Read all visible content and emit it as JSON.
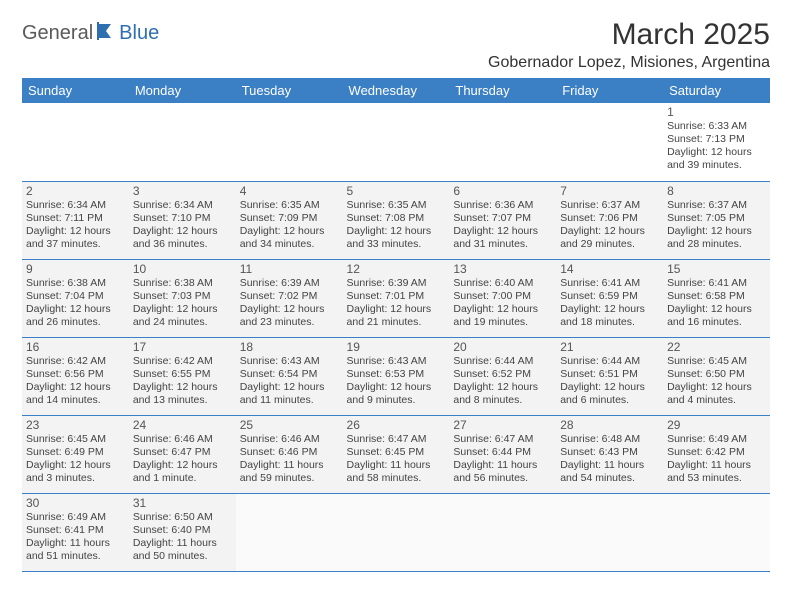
{
  "logo": {
    "part1": "General",
    "part2": "Blue"
  },
  "title": "March 2025",
  "location": "Gobernador Lopez, Misiones, Argentina",
  "colors": {
    "header_bg": "#3b7fc4",
    "header_fg": "#ffffff",
    "border": "#3b7fc4",
    "logo_gray": "#5a5a5a",
    "logo_blue": "#2f6fb0"
  },
  "weekdays": [
    "Sunday",
    "Monday",
    "Tuesday",
    "Wednesday",
    "Thursday",
    "Friday",
    "Saturday"
  ],
  "weeks": [
    [
      null,
      null,
      null,
      null,
      null,
      null,
      {
        "d": "1",
        "sr": "Sunrise: 6:33 AM",
        "ss": "Sunset: 7:13 PM",
        "dl1": "Daylight: 12 hours",
        "dl2": "and 39 minutes."
      }
    ],
    [
      {
        "d": "2",
        "sr": "Sunrise: 6:34 AM",
        "ss": "Sunset: 7:11 PM",
        "dl1": "Daylight: 12 hours",
        "dl2": "and 37 minutes."
      },
      {
        "d": "3",
        "sr": "Sunrise: 6:34 AM",
        "ss": "Sunset: 7:10 PM",
        "dl1": "Daylight: 12 hours",
        "dl2": "and 36 minutes."
      },
      {
        "d": "4",
        "sr": "Sunrise: 6:35 AM",
        "ss": "Sunset: 7:09 PM",
        "dl1": "Daylight: 12 hours",
        "dl2": "and 34 minutes."
      },
      {
        "d": "5",
        "sr": "Sunrise: 6:35 AM",
        "ss": "Sunset: 7:08 PM",
        "dl1": "Daylight: 12 hours",
        "dl2": "and 33 minutes."
      },
      {
        "d": "6",
        "sr": "Sunrise: 6:36 AM",
        "ss": "Sunset: 7:07 PM",
        "dl1": "Daylight: 12 hours",
        "dl2": "and 31 minutes."
      },
      {
        "d": "7",
        "sr": "Sunrise: 6:37 AM",
        "ss": "Sunset: 7:06 PM",
        "dl1": "Daylight: 12 hours",
        "dl2": "and 29 minutes."
      },
      {
        "d": "8",
        "sr": "Sunrise: 6:37 AM",
        "ss": "Sunset: 7:05 PM",
        "dl1": "Daylight: 12 hours",
        "dl2": "and 28 minutes."
      }
    ],
    [
      {
        "d": "9",
        "sr": "Sunrise: 6:38 AM",
        "ss": "Sunset: 7:04 PM",
        "dl1": "Daylight: 12 hours",
        "dl2": "and 26 minutes."
      },
      {
        "d": "10",
        "sr": "Sunrise: 6:38 AM",
        "ss": "Sunset: 7:03 PM",
        "dl1": "Daylight: 12 hours",
        "dl2": "and 24 minutes."
      },
      {
        "d": "11",
        "sr": "Sunrise: 6:39 AM",
        "ss": "Sunset: 7:02 PM",
        "dl1": "Daylight: 12 hours",
        "dl2": "and 23 minutes."
      },
      {
        "d": "12",
        "sr": "Sunrise: 6:39 AM",
        "ss": "Sunset: 7:01 PM",
        "dl1": "Daylight: 12 hours",
        "dl2": "and 21 minutes."
      },
      {
        "d": "13",
        "sr": "Sunrise: 6:40 AM",
        "ss": "Sunset: 7:00 PM",
        "dl1": "Daylight: 12 hours",
        "dl2": "and 19 minutes."
      },
      {
        "d": "14",
        "sr": "Sunrise: 6:41 AM",
        "ss": "Sunset: 6:59 PM",
        "dl1": "Daylight: 12 hours",
        "dl2": "and 18 minutes."
      },
      {
        "d": "15",
        "sr": "Sunrise: 6:41 AM",
        "ss": "Sunset: 6:58 PM",
        "dl1": "Daylight: 12 hours",
        "dl2": "and 16 minutes."
      }
    ],
    [
      {
        "d": "16",
        "sr": "Sunrise: 6:42 AM",
        "ss": "Sunset: 6:56 PM",
        "dl1": "Daylight: 12 hours",
        "dl2": "and 14 minutes."
      },
      {
        "d": "17",
        "sr": "Sunrise: 6:42 AM",
        "ss": "Sunset: 6:55 PM",
        "dl1": "Daylight: 12 hours",
        "dl2": "and 13 minutes."
      },
      {
        "d": "18",
        "sr": "Sunrise: 6:43 AM",
        "ss": "Sunset: 6:54 PM",
        "dl1": "Daylight: 12 hours",
        "dl2": "and 11 minutes."
      },
      {
        "d": "19",
        "sr": "Sunrise: 6:43 AM",
        "ss": "Sunset: 6:53 PM",
        "dl1": "Daylight: 12 hours",
        "dl2": "and 9 minutes."
      },
      {
        "d": "20",
        "sr": "Sunrise: 6:44 AM",
        "ss": "Sunset: 6:52 PM",
        "dl1": "Daylight: 12 hours",
        "dl2": "and 8 minutes."
      },
      {
        "d": "21",
        "sr": "Sunrise: 6:44 AM",
        "ss": "Sunset: 6:51 PM",
        "dl1": "Daylight: 12 hours",
        "dl2": "and 6 minutes."
      },
      {
        "d": "22",
        "sr": "Sunrise: 6:45 AM",
        "ss": "Sunset: 6:50 PM",
        "dl1": "Daylight: 12 hours",
        "dl2": "and 4 minutes."
      }
    ],
    [
      {
        "d": "23",
        "sr": "Sunrise: 6:45 AM",
        "ss": "Sunset: 6:49 PM",
        "dl1": "Daylight: 12 hours",
        "dl2": "and 3 minutes."
      },
      {
        "d": "24",
        "sr": "Sunrise: 6:46 AM",
        "ss": "Sunset: 6:47 PM",
        "dl1": "Daylight: 12 hours",
        "dl2": "and 1 minute."
      },
      {
        "d": "25",
        "sr": "Sunrise: 6:46 AM",
        "ss": "Sunset: 6:46 PM",
        "dl1": "Daylight: 11 hours",
        "dl2": "and 59 minutes."
      },
      {
        "d": "26",
        "sr": "Sunrise: 6:47 AM",
        "ss": "Sunset: 6:45 PM",
        "dl1": "Daylight: 11 hours",
        "dl2": "and 58 minutes."
      },
      {
        "d": "27",
        "sr": "Sunrise: 6:47 AM",
        "ss": "Sunset: 6:44 PM",
        "dl1": "Daylight: 11 hours",
        "dl2": "and 56 minutes."
      },
      {
        "d": "28",
        "sr": "Sunrise: 6:48 AM",
        "ss": "Sunset: 6:43 PM",
        "dl1": "Daylight: 11 hours",
        "dl2": "and 54 minutes."
      },
      {
        "d": "29",
        "sr": "Sunrise: 6:49 AM",
        "ss": "Sunset: 6:42 PM",
        "dl1": "Daylight: 11 hours",
        "dl2": "and 53 minutes."
      }
    ],
    [
      {
        "d": "30",
        "sr": "Sunrise: 6:49 AM",
        "ss": "Sunset: 6:41 PM",
        "dl1": "Daylight: 11 hours",
        "dl2": "and 51 minutes."
      },
      {
        "d": "31",
        "sr": "Sunrise: 6:50 AM",
        "ss": "Sunset: 6:40 PM",
        "dl1": "Daylight: 11 hours",
        "dl2": "and 50 minutes."
      },
      null,
      null,
      null,
      null,
      null
    ]
  ]
}
